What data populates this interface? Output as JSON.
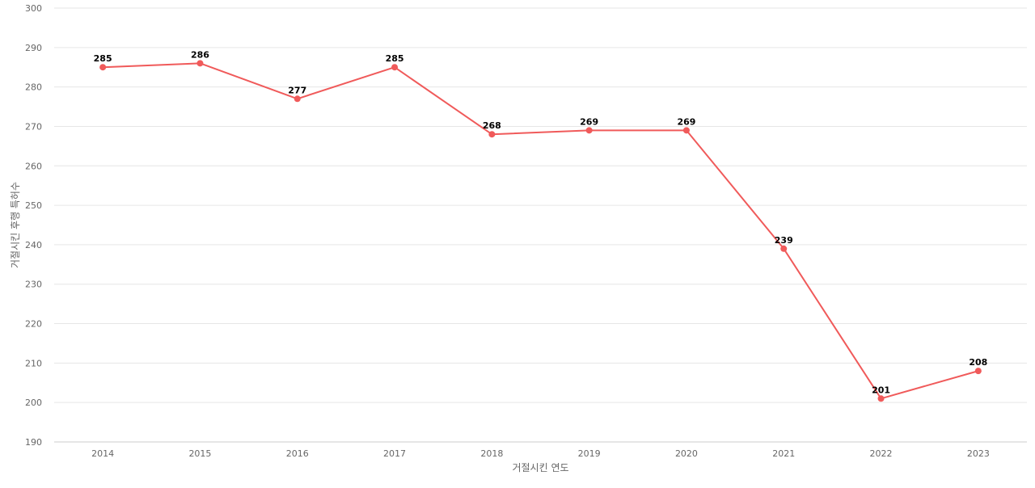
{
  "chart_data": {
    "type": "line",
    "xlabel": "거절시킨 연도",
    "ylabel": "거절시킨 후행 특허수",
    "categories": [
      "2014",
      "2015",
      "2016",
      "2017",
      "2018",
      "2019",
      "2020",
      "2021",
      "2022",
      "2023"
    ],
    "series": [
      {
        "values": [
          285,
          286,
          277,
          285,
          268,
          269,
          269,
          239,
          201,
          208
        ]
      }
    ],
    "ylim": [
      190,
      300
    ],
    "yticks": [
      190,
      200,
      210,
      220,
      230,
      240,
      250,
      260,
      270,
      280,
      290,
      300
    ],
    "grid": true,
    "line_color": "#f05a5a",
    "data_labels": true
  }
}
